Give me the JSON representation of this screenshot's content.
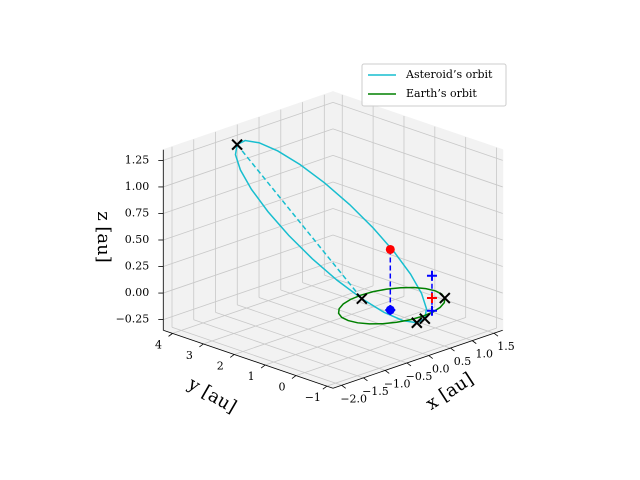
{
  "chart_data": {
    "type": "line3d",
    "xlabel": "x [au]",
    "ylabel": "y [au]",
    "zlabel": "z [au]",
    "xlim": [
      -2.2,
      1.7
    ],
    "ylim": [
      -1.2,
      4.3
    ],
    "zlim": [
      -0.35,
      1.35
    ],
    "xticks": [
      {
        "value": -2,
        "label": "−2.0"
      },
      {
        "value": -1.5,
        "label": "−1.5"
      },
      {
        "value": -1,
        "label": "−1.0"
      },
      {
        "value": -0.5,
        "label": "−0.5"
      },
      {
        "value": 0,
        "label": "0.0"
      },
      0.5,
      {
        "value": 1,
        "label": "1.0"
      },
      1.5
    ],
    "yticks": [
      {
        "value": -1,
        "label": "−1"
      },
      0,
      1,
      2,
      3,
      4
    ],
    "zticks": [
      {
        "value": -0.25,
        "label": "−0.25"
      },
      {
        "value": 0,
        "label": "0.00"
      },
      0.25,
      {
        "value": 0.5,
        "label": "0.50"
      },
      0.75,
      {
        "value": 1,
        "label": "1.00"
      },
      1.25
    ],
    "grid": true,
    "legend": "upper right",
    "series": [
      {
        "name": "Asteroid’s orbit",
        "color": "#17becf",
        "x": [
          -1.0,
          -0.843,
          -0.653,
          -0.442,
          -0.225,
          -0.016,
          0.17,
          0.32,
          0.425,
          0.478,
          0.473,
          0.413,
          0.3,
          0.143,
          -0.047,
          -0.258,
          -0.475,
          -0.684,
          -0.87,
          -1.02,
          -1.125,
          -1.178,
          -1.173,
          -1.113,
          -1.0
        ],
        "y": [
          3.6,
          3.562,
          3.38,
          3.069,
          2.651,
          2.151,
          1.605,
          1.051,
          0.525,
          0.065,
          -0.3,
          -0.544,
          -0.65,
          -0.612,
          -0.43,
          -0.119,
          0.299,
          0.799,
          1.345,
          1.899,
          2.425,
          2.885,
          3.25,
          3.494,
          3.6
        ],
        "z": [
          1.3,
          1.32,
          1.291,
          1.215,
          1.097,
          0.945,
          0.77,
          0.583,
          0.397,
          0.225,
          0.079,
          -0.032,
          -0.1,
          -0.12,
          -0.091,
          -0.015,
          0.103,
          0.255,
          0.43,
          0.617,
          0.803,
          0.975,
          1.121,
          1.232,
          1.3
        ]
      },
      {
        "name": "Earth’s orbit",
        "color": "#008000",
        "x": [
          1,
          0.966,
          0.866,
          0.707,
          0.5,
          0.259,
          0,
          -0.259,
          -0.5,
          -0.707,
          -0.866,
          -0.966,
          -1,
          -0.966,
          -0.866,
          -0.707,
          -0.5,
          -0.259,
          0,
          0.259,
          0.5,
          0.707,
          0.866,
          0.966,
          1
        ],
        "y": [
          0,
          0.259,
          0.5,
          0.707,
          0.866,
          0.966,
          1,
          0.966,
          0.866,
          0.707,
          0.5,
          0.259,
          0,
          -0.259,
          -0.5,
          -0.707,
          -0.866,
          -0.966,
          -1,
          -0.966,
          -0.866,
          -0.707,
          -0.5,
          -0.259,
          0
        ],
        "z": [
          0,
          0,
          0,
          0,
          0,
          0,
          0,
          0,
          0,
          0,
          0,
          0,
          0,
          0,
          0,
          0,
          0,
          0,
          0,
          0,
          0,
          0,
          0,
          0,
          0
        ]
      }
    ],
    "lines": [
      {
        "style": "dashed",
        "color": "#17becf",
        "x": [
          -1.0,
          -0.475
        ],
        "y": [
          3.6,
          0.299
        ],
        "z": [
          1.3,
          0.103
        ]
      },
      {
        "style": "dashed",
        "color": "#0000ff",
        "x": [
          -0.16,
          -0.16
        ],
        "y": [
          -0.18,
          -0.18
        ],
        "z": [
          0.57,
          0
        ]
      },
      {
        "style": "dashed",
        "color": "#0000ff",
        "x": [
          0.72,
          0.72
        ],
        "y": [
          -0.29,
          -0.29
        ],
        "z": [
          0.21,
          -0.12
        ]
      }
    ],
    "markers": [
      {
        "shape": "x",
        "color": "#000000",
        "x": [
          -1.0,
          -0.475,
          0.3,
          0.143,
          0.866
        ],
        "y": [
          3.6,
          0.299,
          -0.65,
          -0.612,
          -0.5
        ],
        "z": [
          1.3,
          0.103,
          -0.1,
          -0.12,
          0
        ]
      },
      {
        "shape": "o",
        "color": "#ff0000",
        "x": [
          -0.16
        ],
        "y": [
          -0.18
        ],
        "z": [
          0.57
        ]
      },
      {
        "shape": "o",
        "color": "#0000ff",
        "x": [
          -0.16
        ],
        "y": [
          -0.18
        ],
        "z": [
          0
        ]
      },
      {
        "shape": "+",
        "color": "#0000ff",
        "x": [
          -0.16,
          0.72,
          0.72
        ],
        "y": [
          -0.18,
          -0.29,
          -0.29
        ],
        "z": [
          0,
          0.21,
          -0.12
        ]
      },
      {
        "shape": "+",
        "color": "#ff0000",
        "x": [
          0.72
        ],
        "y": [
          -0.29
        ],
        "z": [
          0
        ]
      }
    ]
  }
}
